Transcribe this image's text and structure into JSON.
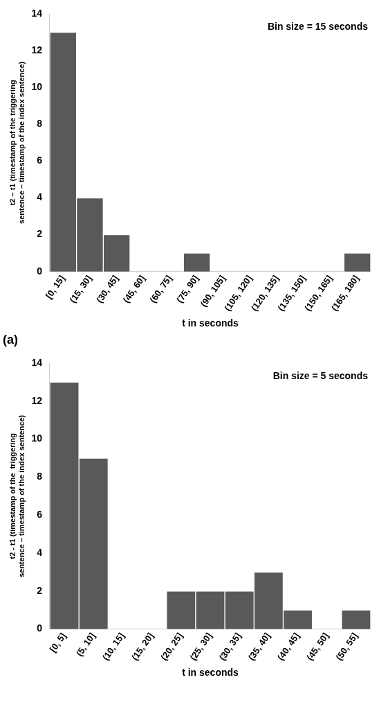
{
  "chart_data": [
    {
      "type": "bar",
      "categories": [
        "[0, 15]",
        "(15, 30]",
        "(30, 45]",
        "(45, 60]",
        "(60, 75]",
        "(75, 90]",
        "(90, 105]",
        "(105, 120]",
        "(120, 135]",
        "(135, 150]",
        "(150, 165]",
        "(165, 180]"
      ],
      "values": [
        13,
        4,
        2,
        0,
        0,
        1,
        0,
        0,
        0,
        0,
        0,
        1
      ],
      "color": "#595959",
      "ylim": [
        0,
        14
      ],
      "yticks": [
        0,
        2,
        4,
        6,
        8,
        10,
        12,
        14
      ],
      "grid": false,
      "xlabel": "t in seconds",
      "ylabel": "t2 – t1 (timestamp of the triggering sentence – timestamp of the index sentence)",
      "annotations": [
        "Bin size = 15 seconds",
        "(a)"
      ]
    },
    {
      "type": "bar",
      "categories": [
        "[0, 5]",
        "(5, 10]",
        "(10, 15]",
        "(15, 20]",
        "(20, 25]",
        "(25, 30]",
        "(30, 35]",
        "(35, 40]",
        "(40, 45]",
        "(45, 50]",
        "(50, 55]"
      ],
      "values": [
        13,
        9,
        0,
        0,
        2,
        2,
        2,
        3,
        1,
        0,
        1
      ],
      "color": "#595959",
      "ylim": [
        0,
        14
      ],
      "yticks": [
        0,
        2,
        4,
        6,
        8,
        10,
        12,
        14
      ],
      "grid": false,
      "xlabel": "t in seconds",
      "ylabel": "t2 - t1 (timestamp of the  triggering sentence – timestamp of the index sentence)",
      "annotations": [
        "Bin size = 5 seconds"
      ]
    }
  ]
}
